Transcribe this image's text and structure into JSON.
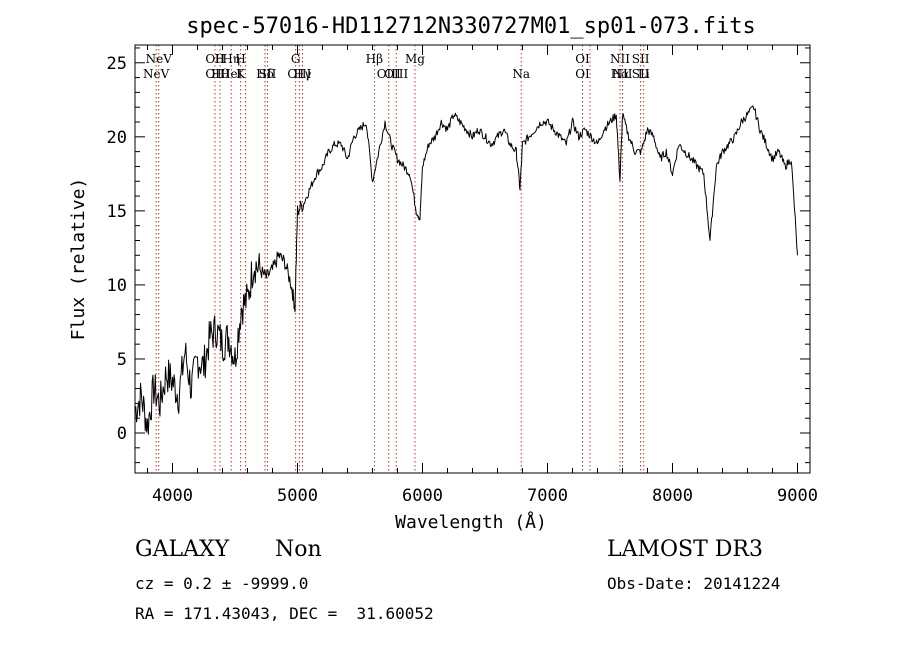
{
  "chart_data": {
    "type": "line",
    "title": "spec-57016-HD112712N330727M01_sp01-073.fits",
    "xlabel": "Wavelength (Å)",
    "ylabel": "Flux (relative)",
    "xlim": [
      3700,
      9100
    ],
    "ylim": [
      -2.7,
      26.2
    ],
    "xticks": [
      4000,
      5000,
      6000,
      7000,
      8000,
      9000
    ],
    "yticks": [
      0,
      5,
      10,
      15,
      20,
      25
    ],
    "grid": false,
    "series": [
      {
        "name": "flux",
        "x": [
          3700,
          3750,
          3800,
          3850,
          3900,
          3950,
          4000,
          4050,
          4100,
          4150,
          4200,
          4250,
          4300,
          4350,
          4400,
          4450,
          4500,
          4550,
          4600,
          4650,
          4700,
          4750,
          4800,
          4850,
          4900,
          4950,
          4980,
          5000,
          5050,
          5100,
          5150,
          5200,
          5250,
          5300,
          5350,
          5400,
          5450,
          5500,
          5550,
          5600,
          5650,
          5700,
          5750,
          5800,
          5850,
          5900,
          5950,
          5980,
          6000,
          6050,
          6100,
          6150,
          6200,
          6250,
          6300,
          6350,
          6400,
          6450,
          6500,
          6550,
          6600,
          6650,
          6700,
          6750,
          6780,
          6800,
          6850,
          6900,
          6950,
          7000,
          7050,
          7100,
          7150,
          7200,
          7250,
          7300,
          7350,
          7400,
          7450,
          7500,
          7550,
          7580,
          7600,
          7650,
          7700,
          7750,
          7800,
          7850,
          7900,
          7950,
          8000,
          8050,
          8100,
          8150,
          8200,
          8250,
          8300,
          8350,
          8400,
          8450,
          8500,
          8550,
          8600,
          8650,
          8700,
          8750,
          8800,
          8850,
          8900,
          8950,
          9000
        ],
        "values": [
          1.5,
          2.5,
          0.5,
          3.0,
          2.0,
          4.0,
          3.5,
          2.5,
          5.5,
          3.0,
          5.0,
          4.5,
          6.5,
          7.0,
          6.0,
          6.5,
          5.0,
          8.5,
          9.0,
          11.5,
          11.0,
          10.5,
          11.0,
          12.0,
          11.5,
          10.0,
          8.5,
          15.0,
          15.5,
          16.5,
          17.5,
          18.0,
          19.0,
          19.5,
          19.5,
          18.5,
          20.0,
          20.5,
          21.0,
          17.0,
          19.0,
          21.0,
          19.5,
          18.5,
          18.0,
          17.5,
          15.0,
          14.5,
          18.0,
          19.5,
          20.0,
          21.0,
          20.5,
          21.5,
          21.0,
          20.5,
          20.0,
          20.5,
          20.0,
          19.5,
          20.0,
          20.5,
          19.5,
          19.0,
          16.5,
          19.5,
          20.0,
          20.5,
          21.0,
          21.0,
          20.5,
          20.0,
          19.5,
          21.0,
          20.0,
          20.5,
          20.0,
          19.5,
          20.5,
          21.0,
          21.5,
          17.0,
          21.5,
          20.0,
          19.0,
          19.0,
          20.5,
          20.0,
          18.5,
          19.0,
          17.5,
          19.5,
          19.0,
          18.5,
          18.0,
          17.5,
          13.0,
          18.0,
          19.0,
          19.5,
          20.0,
          21.0,
          21.5,
          22.0,
          20.5,
          19.5,
          18.5,
          19.0,
          18.0,
          18.5,
          12.0
        ]
      }
    ],
    "lines": [
      {
        "x": 3869,
        "top": "",
        "bottom": "NeV"
      },
      {
        "x": 3890,
        "top": "NeV",
        "bottom": ""
      },
      {
        "x": 4340,
        "top": "OII",
        "bottom": "OII"
      },
      {
        "x": 4380,
        "top": "H",
        "bottom": "Hθ"
      },
      {
        "x": 4470,
        "top": "Hη",
        "bottom": "HeI"
      },
      {
        "x": 4545,
        "top": "H",
        "bottom": "K"
      },
      {
        "x": 4585,
        "top": "",
        "bottom": ""
      },
      {
        "x": 4740,
        "top": "",
        "bottom": "Hδ"
      },
      {
        "x": 4760,
        "top": "",
        "bottom": "SII"
      },
      {
        "x": 4985,
        "top": "G",
        "bottom": ""
      },
      {
        "x": 5015,
        "top": "",
        "bottom": "OIII"
      },
      {
        "x": 5040,
        "top": "",
        "bottom": "Hγ"
      },
      {
        "x": 5615,
        "top": "Hβ",
        "bottom": ""
      },
      {
        "x": 5730,
        "top": "",
        "bottom": "OIII"
      },
      {
        "x": 5790,
        "top": "",
        "bottom": "OIII"
      },
      {
        "x": 5940,
        "top": "Mg",
        "bottom": ""
      },
      {
        "x": 6790,
        "top": "",
        "bottom": "Na"
      },
      {
        "x": 7280,
        "top": "OI",
        "bottom": "OI"
      },
      {
        "x": 7340,
        "top": "",
        "bottom": ""
      },
      {
        "x": 7580,
        "top": "NII",
        "bottom": "Hα"
      },
      {
        "x": 7600,
        "top": "",
        "bottom": "NII"
      },
      {
        "x": 7745,
        "top": "SII",
        "bottom": "SII"
      },
      {
        "x": 7770,
        "top": "",
        "bottom": "Li"
      }
    ]
  },
  "info": {
    "classification": "GALAXY",
    "subclass": "Non",
    "survey": "LAMOST DR3",
    "cz": "cz = 0.2 ± -9999.0",
    "obs_date": "Obs-Date: 20141224",
    "coords": "RA = 171.43043, DEC =  31.60052"
  }
}
